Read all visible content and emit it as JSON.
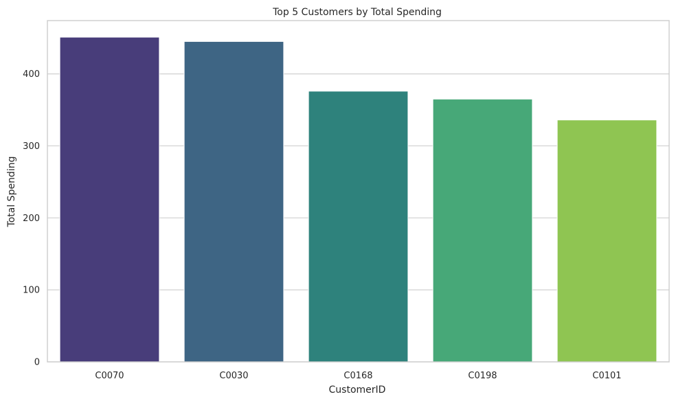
{
  "chart_data": {
    "type": "bar",
    "title": "Top 5 Customers by Total Spending",
    "xlabel": "CustomerID",
    "ylabel": "Total Spending",
    "categories": [
      "C0070",
      "C0030",
      "C0168",
      "C0198",
      "C0101"
    ],
    "values": [
      451,
      445,
      376,
      365,
      336
    ],
    "ylim": [
      0,
      474
    ],
    "yticks": [
      0,
      100,
      200,
      300,
      400
    ],
    "colors": [
      "#483D7A",
      "#3E6584",
      "#2E827C",
      "#47A878",
      "#8FC552"
    ],
    "grid": "horizontal",
    "legend": "none"
  }
}
